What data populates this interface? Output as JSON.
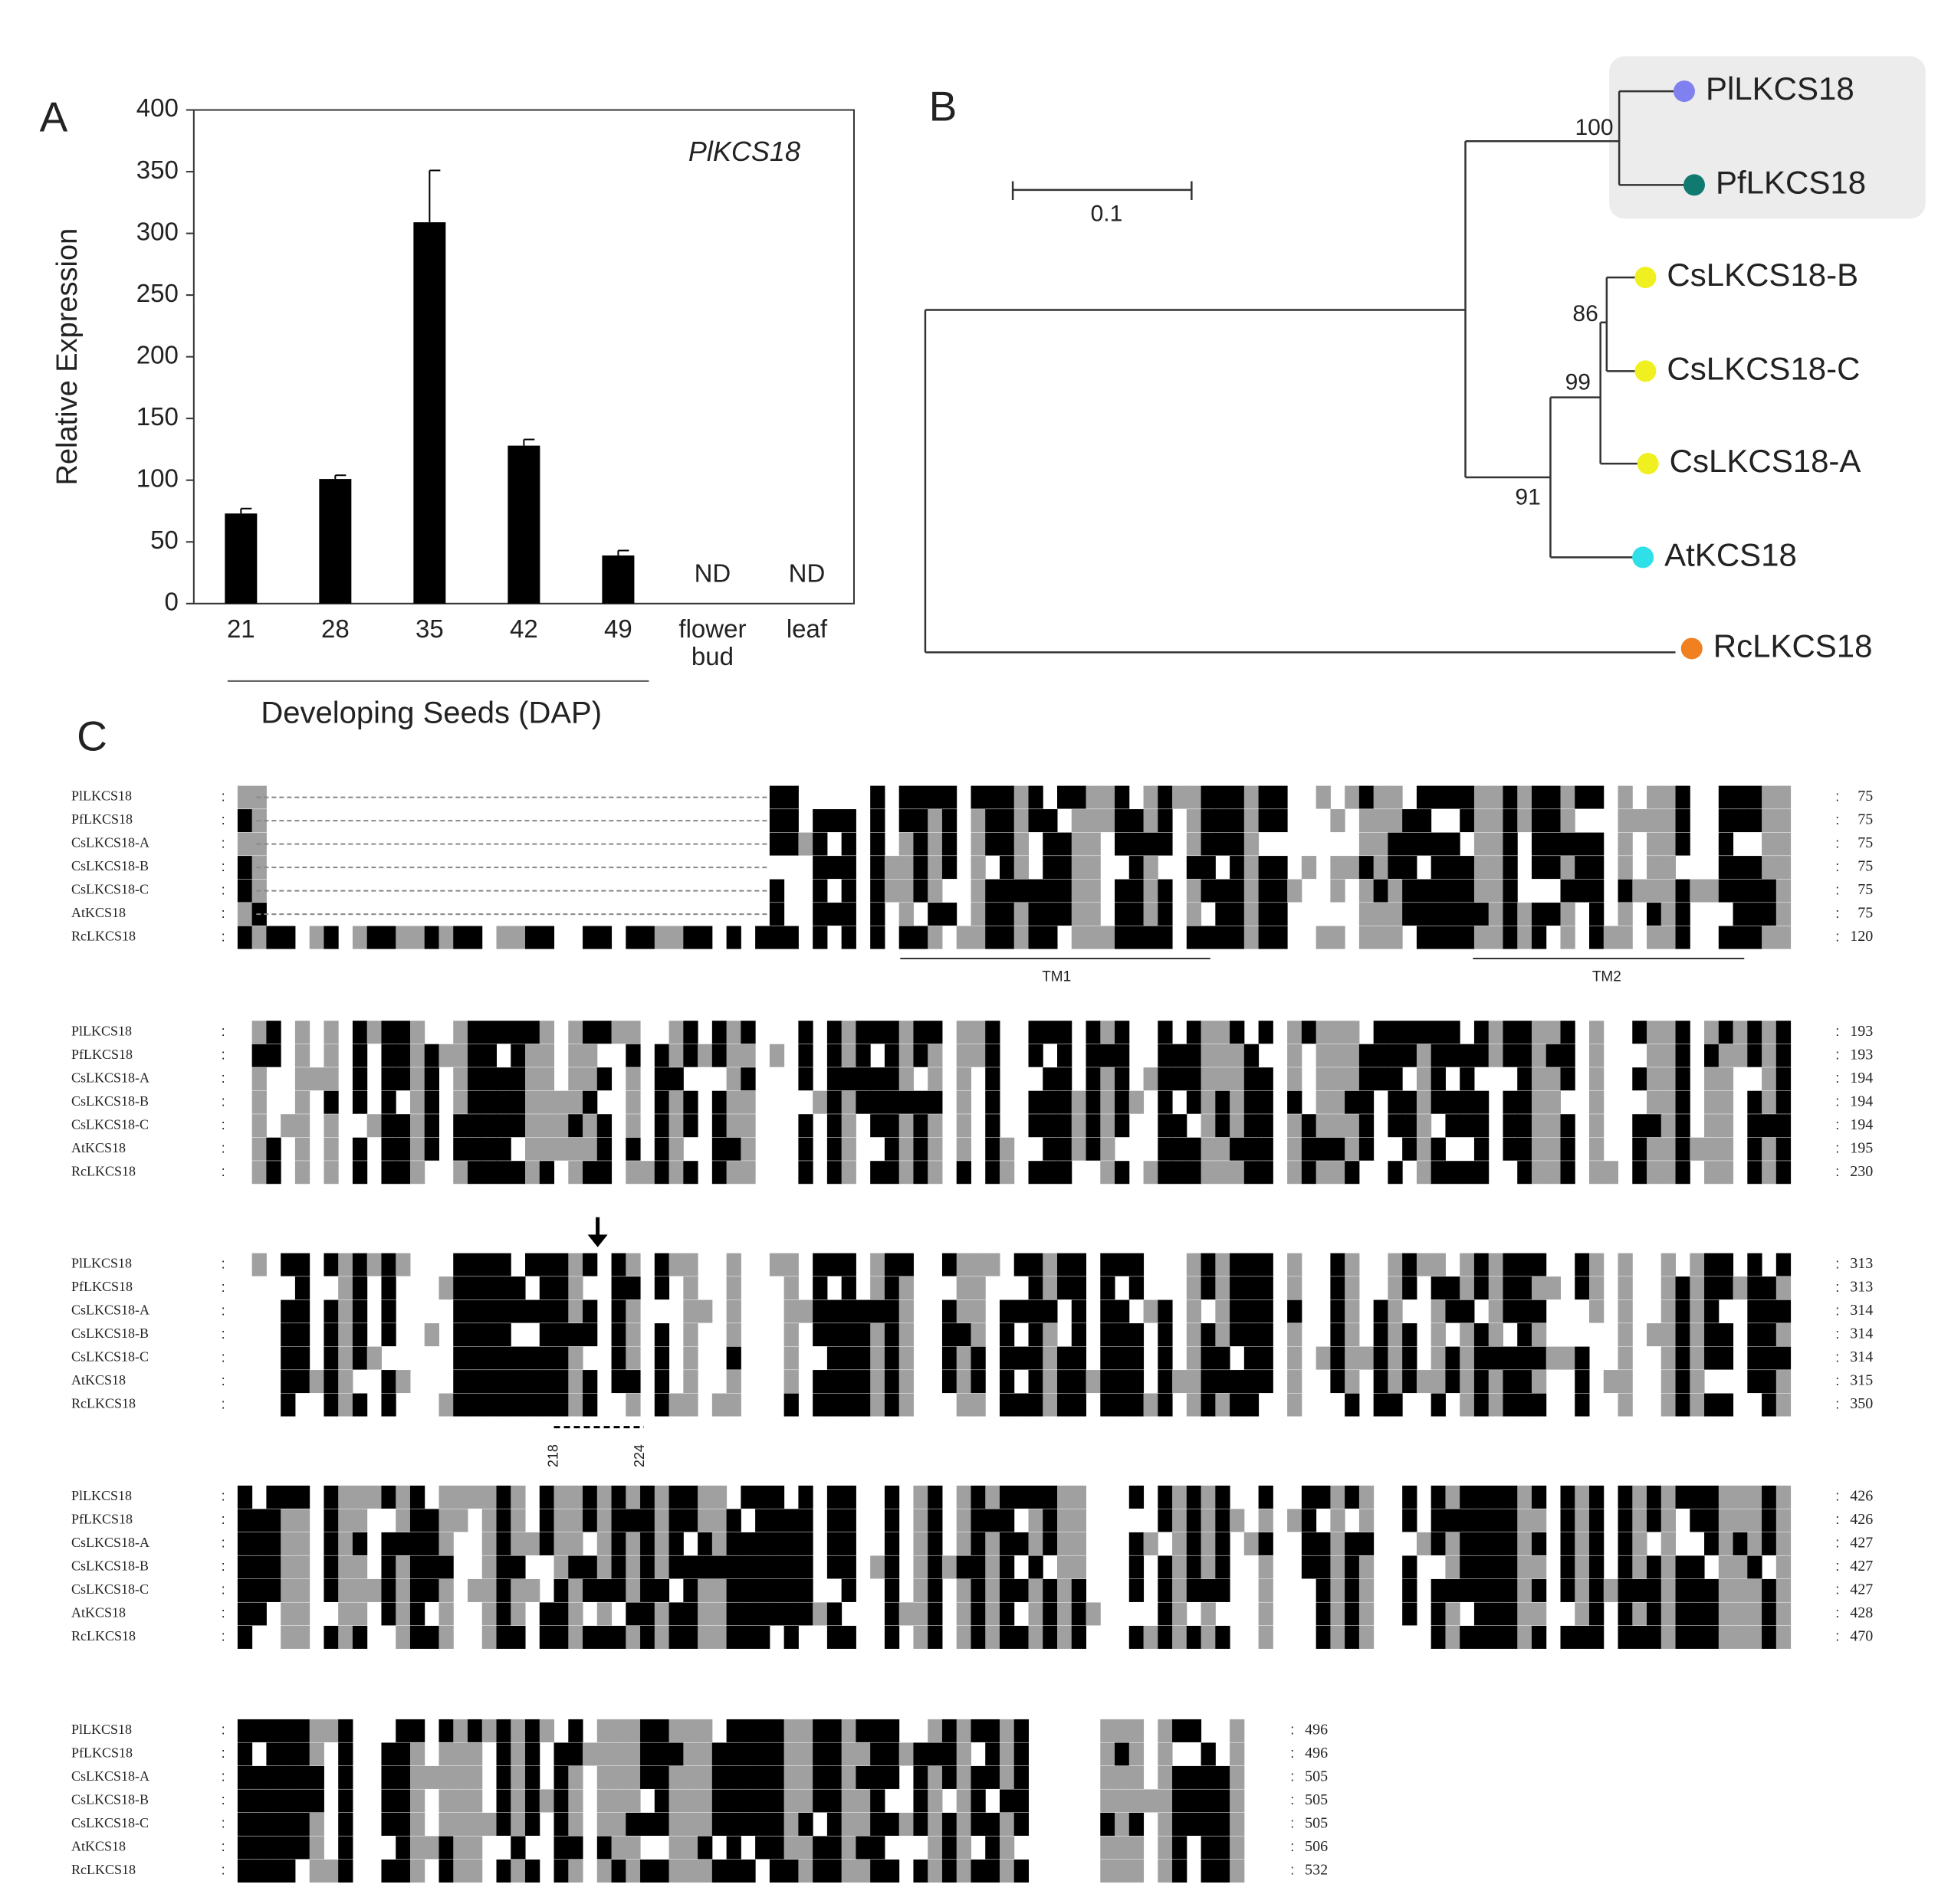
{
  "panel_labels": [
    "A",
    "B",
    "C"
  ],
  "chart_data": {
    "type": "bar",
    "title": "PlKCS18",
    "ylabel": "Relative Expression",
    "categories": [
      "21",
      "28",
      "35",
      "42",
      "49",
      "flower bud",
      "leaf"
    ],
    "values": [
      73,
      101,
      309,
      128,
      39,
      null,
      null
    ],
    "errors": [
      4,
      3,
      42,
      5,
      4,
      null,
      null
    ],
    "value_labels": [
      null,
      null,
      null,
      null,
      null,
      "ND",
      "ND"
    ],
    "group_label": "Developing Seeds (DAP)",
    "color": "#000000",
    "ylim": [
      0,
      400
    ],
    "yticks": [
      0,
      50,
      100,
      150,
      200,
      250,
      300,
      350,
      400
    ]
  },
  "tree": {
    "scale_label": "0.1",
    "leaves": [
      {
        "label": "PlLKCS18",
        "color": "#8080f0"
      },
      {
        "label": "PfLKCS18",
        "color": "#117a70"
      },
      {
        "label": "CsLKCS18-B",
        "color": "#f0f020"
      },
      {
        "label": "CsLKCS18-C",
        "color": "#f0f020"
      },
      {
        "label": "CsLKCS18-A",
        "color": "#f0f020"
      },
      {
        "label": "AtKCS18",
        "color": "#30e0e8"
      },
      {
        "label": "RcLKCS18",
        "color": "#f08020"
      }
    ],
    "bootstrap": [
      "100",
      "86",
      "99",
      "91"
    ]
  },
  "alignment": {
    "names": [
      "PlLKCS18",
      "PfLKCS18",
      "CsLKCS18-A",
      "CsLKCS18-B",
      "CsLKCS18-C",
      "AtKCS18",
      "RcLKCS18"
    ],
    "blocks": [
      {
        "ends": [
          "75",
          "75",
          "75",
          "75",
          "75",
          "75",
          "120"
        ]
      },
      {
        "ends": [
          "193",
          "193",
          "194",
          "194",
          "194",
          "195",
          "230"
        ]
      },
      {
        "ends": [
          "313",
          "313",
          "314",
          "314",
          "314",
          "315",
          "350"
        ]
      },
      {
        "ends": [
          "426",
          "426",
          "427",
          "427",
          "427",
          "428",
          "470"
        ]
      },
      {
        "ends": [
          "496",
          "496",
          "505",
          "505",
          "505",
          "506",
          "532"
        ]
      }
    ],
    "tm_labels": [
      "TM1",
      "TM2"
    ],
    "site_labels": [
      "218",
      "224"
    ]
  }
}
